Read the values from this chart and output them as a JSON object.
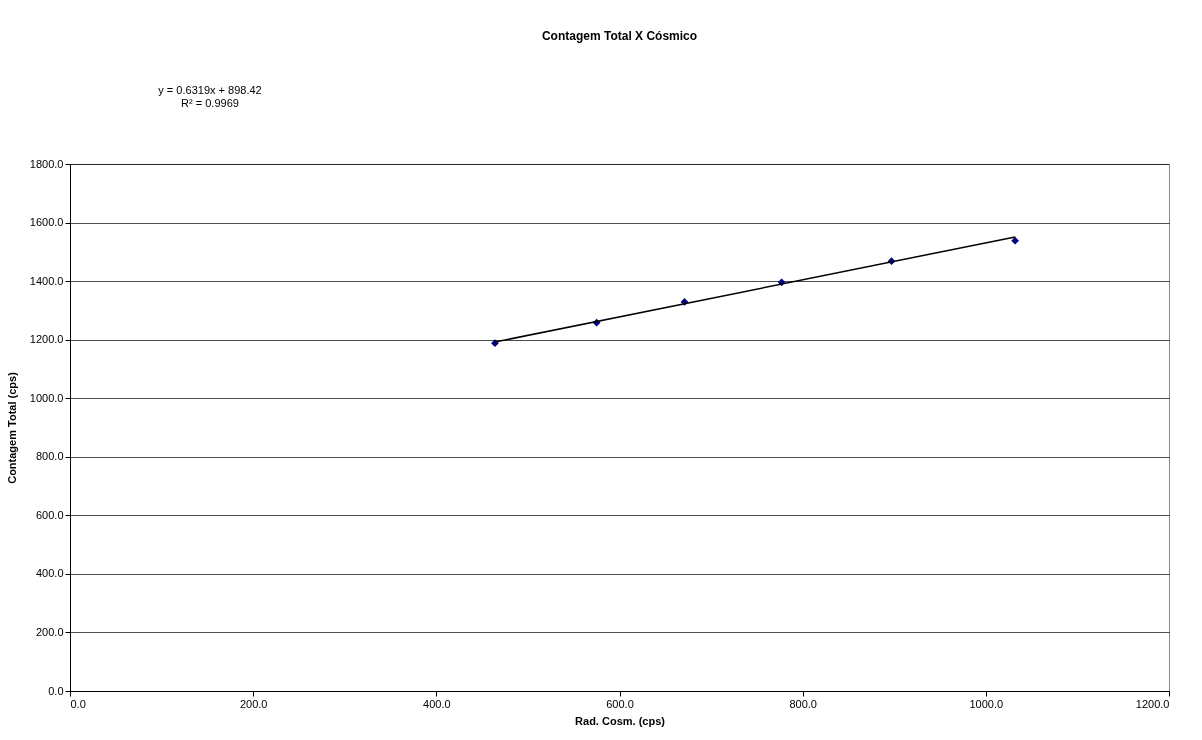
{
  "chart_data": {
    "type": "scatter",
    "title": "Contagem Total X Cósmico",
    "xlabel": "Rad. Cosm. (cps)",
    "ylabel": "Contagem Total (cps)",
    "annotations": [
      "y = 0.6319x + 898.42",
      "R² = 0.9969"
    ],
    "x": [
      464,
      575,
      671,
      777,
      897,
      1032
    ],
    "series": [
      {
        "color": "#000080",
        "marker": "diamond",
        "values": [
          1188,
          1258,
          1329,
          1396,
          1468,
          1538
        ]
      },
      {
        "type": "line",
        "color": "#000000",
        "line_style": "solid",
        "x": [
          464,
          1032
        ],
        "values": [
          1192,
          1551
        ]
      }
    ],
    "xlim": [
      0,
      1200
    ],
    "ylim": [
      0,
      1800
    ],
    "xticks": [
      {
        "value": 0,
        "label": "0.0"
      },
      {
        "value": 200,
        "label": "200.0"
      },
      {
        "value": 400,
        "label": "400.0"
      },
      {
        "value": 600,
        "label": "600.0"
      },
      {
        "value": 800,
        "label": "800.0"
      },
      {
        "value": 1000,
        "label": "1000.0"
      },
      {
        "value": 1200,
        "label": "1200.0"
      }
    ],
    "yticks": [
      {
        "value": 0,
        "label": "0.0"
      },
      {
        "value": 200,
        "label": "200.0"
      },
      {
        "value": 400,
        "label": "400.0"
      },
      {
        "value": 600,
        "label": "600.0"
      },
      {
        "value": 800,
        "label": "800.0"
      },
      {
        "value": 1000,
        "label": "1000.0"
      },
      {
        "value": 1200,
        "label": "1200.0"
      },
      {
        "value": 1400,
        "label": "1400.0"
      },
      {
        "value": 1600,
        "label": "1600.0"
      },
      {
        "value": 1800,
        "label": "1800.0"
      }
    ],
    "grid": "y"
  }
}
